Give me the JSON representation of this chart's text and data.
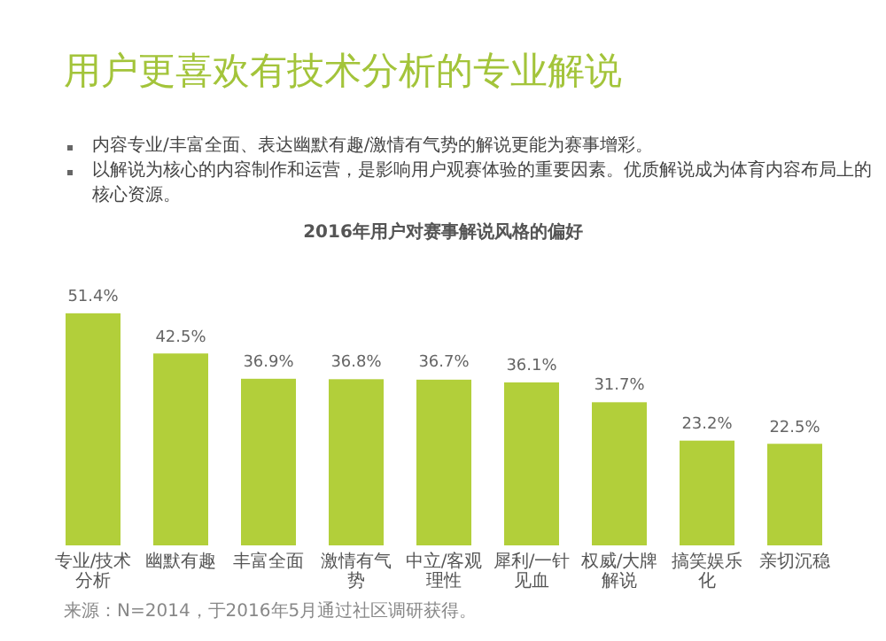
{
  "chart_data": {
    "type": "bar",
    "title": "用户更喜欢有技术分析的专业解说",
    "subtitle": "2016年用户对赛事解说风格的偏好",
    "annotations": [
      "内容专业/丰富全面、表达幽默有趣/激情有气势的解说更能为赛事增彩。",
      "以解说为核心的内容制作和运营，是影响用户观赛体验的重要因素。优质解说成为体育内容布局上的核心资源。",
      "来源：N=2014，于2016年5月通过社区调研获得。"
    ],
    "categories": [
      "专业/技术分析",
      "幽默有趣",
      "丰富全面",
      "激情有气势",
      "中立/客观理性",
      "犀利/一针见血",
      "权威/大牌解说",
      "搞笑娱乐化",
      "亲切沉稳"
    ],
    "values": [
      51.4,
      42.5,
      36.9,
      36.8,
      36.7,
      36.1,
      31.7,
      23.2,
      22.5
    ],
    "value_labels": [
      "51.4%",
      "42.5%",
      "36.9%",
      "36.8%",
      "36.7%",
      "36.1%",
      "31.7%",
      "23.2%",
      "22.5%"
    ],
    "color": "#b2cf3a"
  }
}
